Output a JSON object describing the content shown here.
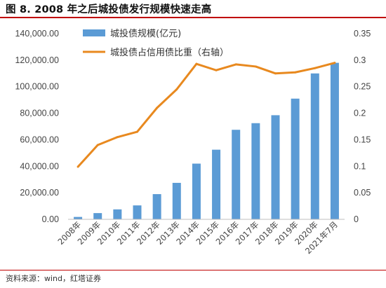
{
  "figure": {
    "title": "图 8. 2008 年之后城投债发行规模快速走高",
    "source": "资料来源：wind，红塔证券"
  },
  "colors": {
    "bar": "#5B9BD5",
    "line": "#E8891F",
    "rule": "#C00000"
  },
  "chart_data": {
    "type": "bar",
    "categories": [
      "2008年",
      "2009年",
      "2010年",
      "2011年",
      "2012年",
      "2013年",
      "2014年",
      "2015年",
      "2016年",
      "2017年",
      "2018年",
      "2019年",
      "2020年",
      "2021年7月"
    ],
    "series": [
      {
        "name": "城投债规模(亿元)",
        "type": "bar",
        "axis": "left",
        "values": [
          1800,
          4700,
          7500,
          10500,
          19000,
          27500,
          42000,
          52500,
          67500,
          72500,
          78500,
          91000,
          110000,
          118000
        ]
      },
      {
        "name": "城投债占信用债比重（右轴）",
        "type": "line",
        "axis": "right",
        "values": [
          0.099,
          0.14,
          0.155,
          0.165,
          0.21,
          0.245,
          0.293,
          0.281,
          0.292,
          0.288,
          0.275,
          0.277,
          0.285,
          0.295
        ]
      }
    ],
    "y_left": {
      "range": [
        0,
        140000
      ],
      "tick_labels": [
        "0.00",
        "20,000.00",
        "40,000.00",
        "60,000.00",
        "80,000.00",
        "100,000.00",
        "120,000.00",
        "140,000.00"
      ]
    },
    "y_right": {
      "range": [
        0,
        0.35
      ],
      "tick_labels": [
        "0",
        "0.05",
        "0.1",
        "0.15",
        "0.2",
        "0.25",
        "0.3",
        "0.35"
      ]
    },
    "grid": false,
    "legend_placement": "top-left"
  }
}
